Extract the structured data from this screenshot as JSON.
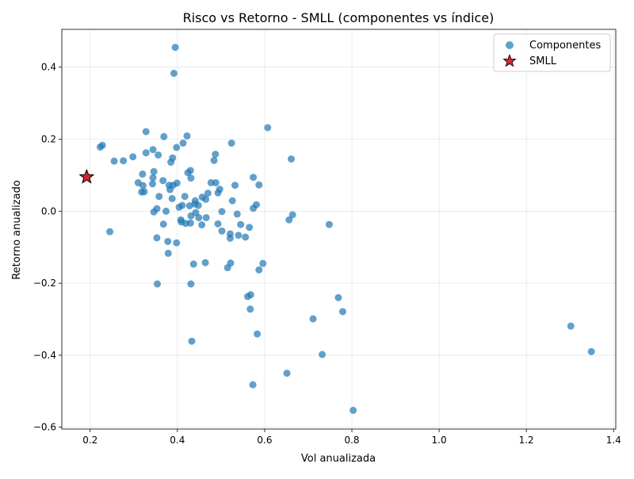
{
  "chart_data": {
    "type": "scatter",
    "title": "Risco vs Retorno - SMLL (componentes vs índice)",
    "xlabel": "Vol anualizada",
    "ylabel": "Retorno anualizado",
    "xlim": [
      0.135,
      1.405
    ],
    "ylim": [
      -0.605,
      0.505
    ],
    "xticks": [
      0.2,
      0.4,
      0.6,
      0.8,
      1.0,
      1.2,
      1.4
    ],
    "yticks": [
      -0.6,
      -0.4,
      -0.2,
      0.0,
      0.2,
      0.4
    ],
    "xtick_labels": [
      "0.2",
      "0.4",
      "0.6",
      "0.8",
      "1.0",
      "1.2",
      "1.4"
    ],
    "ytick_labels": [
      "−0.6",
      "−0.4",
      "−0.2",
      "0.0",
      "0.2",
      "0.4"
    ],
    "grid": true,
    "legend_position": "top-right",
    "series": [
      {
        "name": "Componentes",
        "marker": "circle",
        "color": "#1f77b4",
        "points": [
          [
            0.395,
            0.455
          ],
          [
            0.392,
            0.383
          ],
          [
            0.607,
            0.232
          ],
          [
            0.328,
            0.221
          ],
          [
            0.422,
            0.209
          ],
          [
            0.369,
            0.207
          ],
          [
            0.228,
            0.183
          ],
          [
            0.223,
            0.178
          ],
          [
            0.413,
            0.189
          ],
          [
            0.524,
            0.189
          ],
          [
            0.344,
            0.171
          ],
          [
            0.398,
            0.177
          ],
          [
            0.328,
            0.162
          ],
          [
            0.356,
            0.156
          ],
          [
            0.487,
            0.158
          ],
          [
            0.389,
            0.148
          ],
          [
            0.661,
            0.145
          ],
          [
            0.298,
            0.151
          ],
          [
            0.276,
            0.14
          ],
          [
            0.255,
            0.139
          ],
          [
            0.385,
            0.136
          ],
          [
            0.484,
            0.141
          ],
          [
            0.346,
            0.11
          ],
          [
            0.32,
            0.103
          ],
          [
            0.43,
            0.113
          ],
          [
            0.424,
            0.107
          ],
          [
            0.344,
            0.093
          ],
          [
            0.431,
            0.092
          ],
          [
            0.574,
            0.094
          ],
          [
            0.367,
            0.085
          ],
          [
            0.31,
            0.079
          ],
          [
            0.343,
            0.076
          ],
          [
            0.399,
            0.078
          ],
          [
            0.381,
            0.072
          ],
          [
            0.39,
            0.072
          ],
          [
            0.321,
            0.071
          ],
          [
            0.477,
            0.079
          ],
          [
            0.488,
            0.079
          ],
          [
            0.532,
            0.072
          ],
          [
            0.587,
            0.073
          ],
          [
            0.383,
            0.06
          ],
          [
            0.497,
            0.061
          ],
          [
            0.318,
            0.053
          ],
          [
            0.324,
            0.054
          ],
          [
            0.47,
            0.05
          ],
          [
            0.493,
            0.051
          ],
          [
            0.358,
            0.041
          ],
          [
            0.417,
            0.041
          ],
          [
            0.457,
            0.039
          ],
          [
            0.465,
            0.033
          ],
          [
            0.526,
            0.029
          ],
          [
            0.388,
            0.035
          ],
          [
            0.441,
            0.029
          ],
          [
            0.44,
            0.02
          ],
          [
            0.448,
            0.016
          ],
          [
            0.411,
            0.016
          ],
          [
            0.428,
            0.015
          ],
          [
            0.581,
            0.018
          ],
          [
            0.353,
            0.007
          ],
          [
            0.404,
            0.011
          ],
          [
            0.574,
            0.008
          ],
          [
            0.346,
            -0.002
          ],
          [
            0.374,
            0.0
          ],
          [
            0.442,
            -0.004
          ],
          [
            0.502,
            -0.001
          ],
          [
            0.537,
            -0.008
          ],
          [
            0.664,
            -0.01
          ],
          [
            0.431,
            -0.013
          ],
          [
            0.449,
            -0.018
          ],
          [
            0.466,
            -0.018
          ],
          [
            0.408,
            -0.024
          ],
          [
            0.409,
            -0.03
          ],
          [
            0.419,
            -0.034
          ],
          [
            0.43,
            -0.033
          ],
          [
            0.456,
            -0.038
          ],
          [
            0.493,
            -0.035
          ],
          [
            0.656,
            -0.024
          ],
          [
            0.748,
            -0.037
          ],
          [
            0.368,
            -0.036
          ],
          [
            0.545,
            -0.037
          ],
          [
            0.565,
            -0.045
          ],
          [
            0.502,
            -0.055
          ],
          [
            0.54,
            -0.067
          ],
          [
            0.521,
            -0.063
          ],
          [
            0.521,
            -0.075
          ],
          [
            0.556,
            -0.072
          ],
          [
            0.353,
            -0.074
          ],
          [
            0.378,
            -0.084
          ],
          [
            0.398,
            -0.088
          ],
          [
            0.379,
            -0.117
          ],
          [
            0.437,
            -0.147
          ],
          [
            0.464,
            -0.143
          ],
          [
            0.522,
            -0.144
          ],
          [
            0.596,
            -0.145
          ],
          [
            0.515,
            -0.157
          ],
          [
            0.587,
            -0.163
          ],
          [
            0.354,
            -0.202
          ],
          [
            0.431,
            -0.202
          ],
          [
            0.568,
            -0.232
          ],
          [
            0.561,
            -0.237
          ],
          [
            0.769,
            -0.24
          ],
          [
            0.567,
            -0.272
          ],
          [
            0.779,
            -0.279
          ],
          [
            0.711,
            -0.299
          ],
          [
            1.302,
            -0.319
          ],
          [
            0.583,
            -0.341
          ],
          [
            0.433,
            -0.361
          ],
          [
            1.349,
            -0.39
          ],
          [
            0.732,
            -0.398
          ],
          [
            0.651,
            -0.45
          ],
          [
            0.573,
            -0.482
          ],
          [
            0.803,
            -0.553
          ],
          [
            0.245,
            -0.057
          ]
        ]
      },
      {
        "name": "SMLL",
        "marker": "star",
        "color": "#d62728",
        "points": [
          [
            0.192,
            0.095
          ]
        ]
      }
    ]
  }
}
